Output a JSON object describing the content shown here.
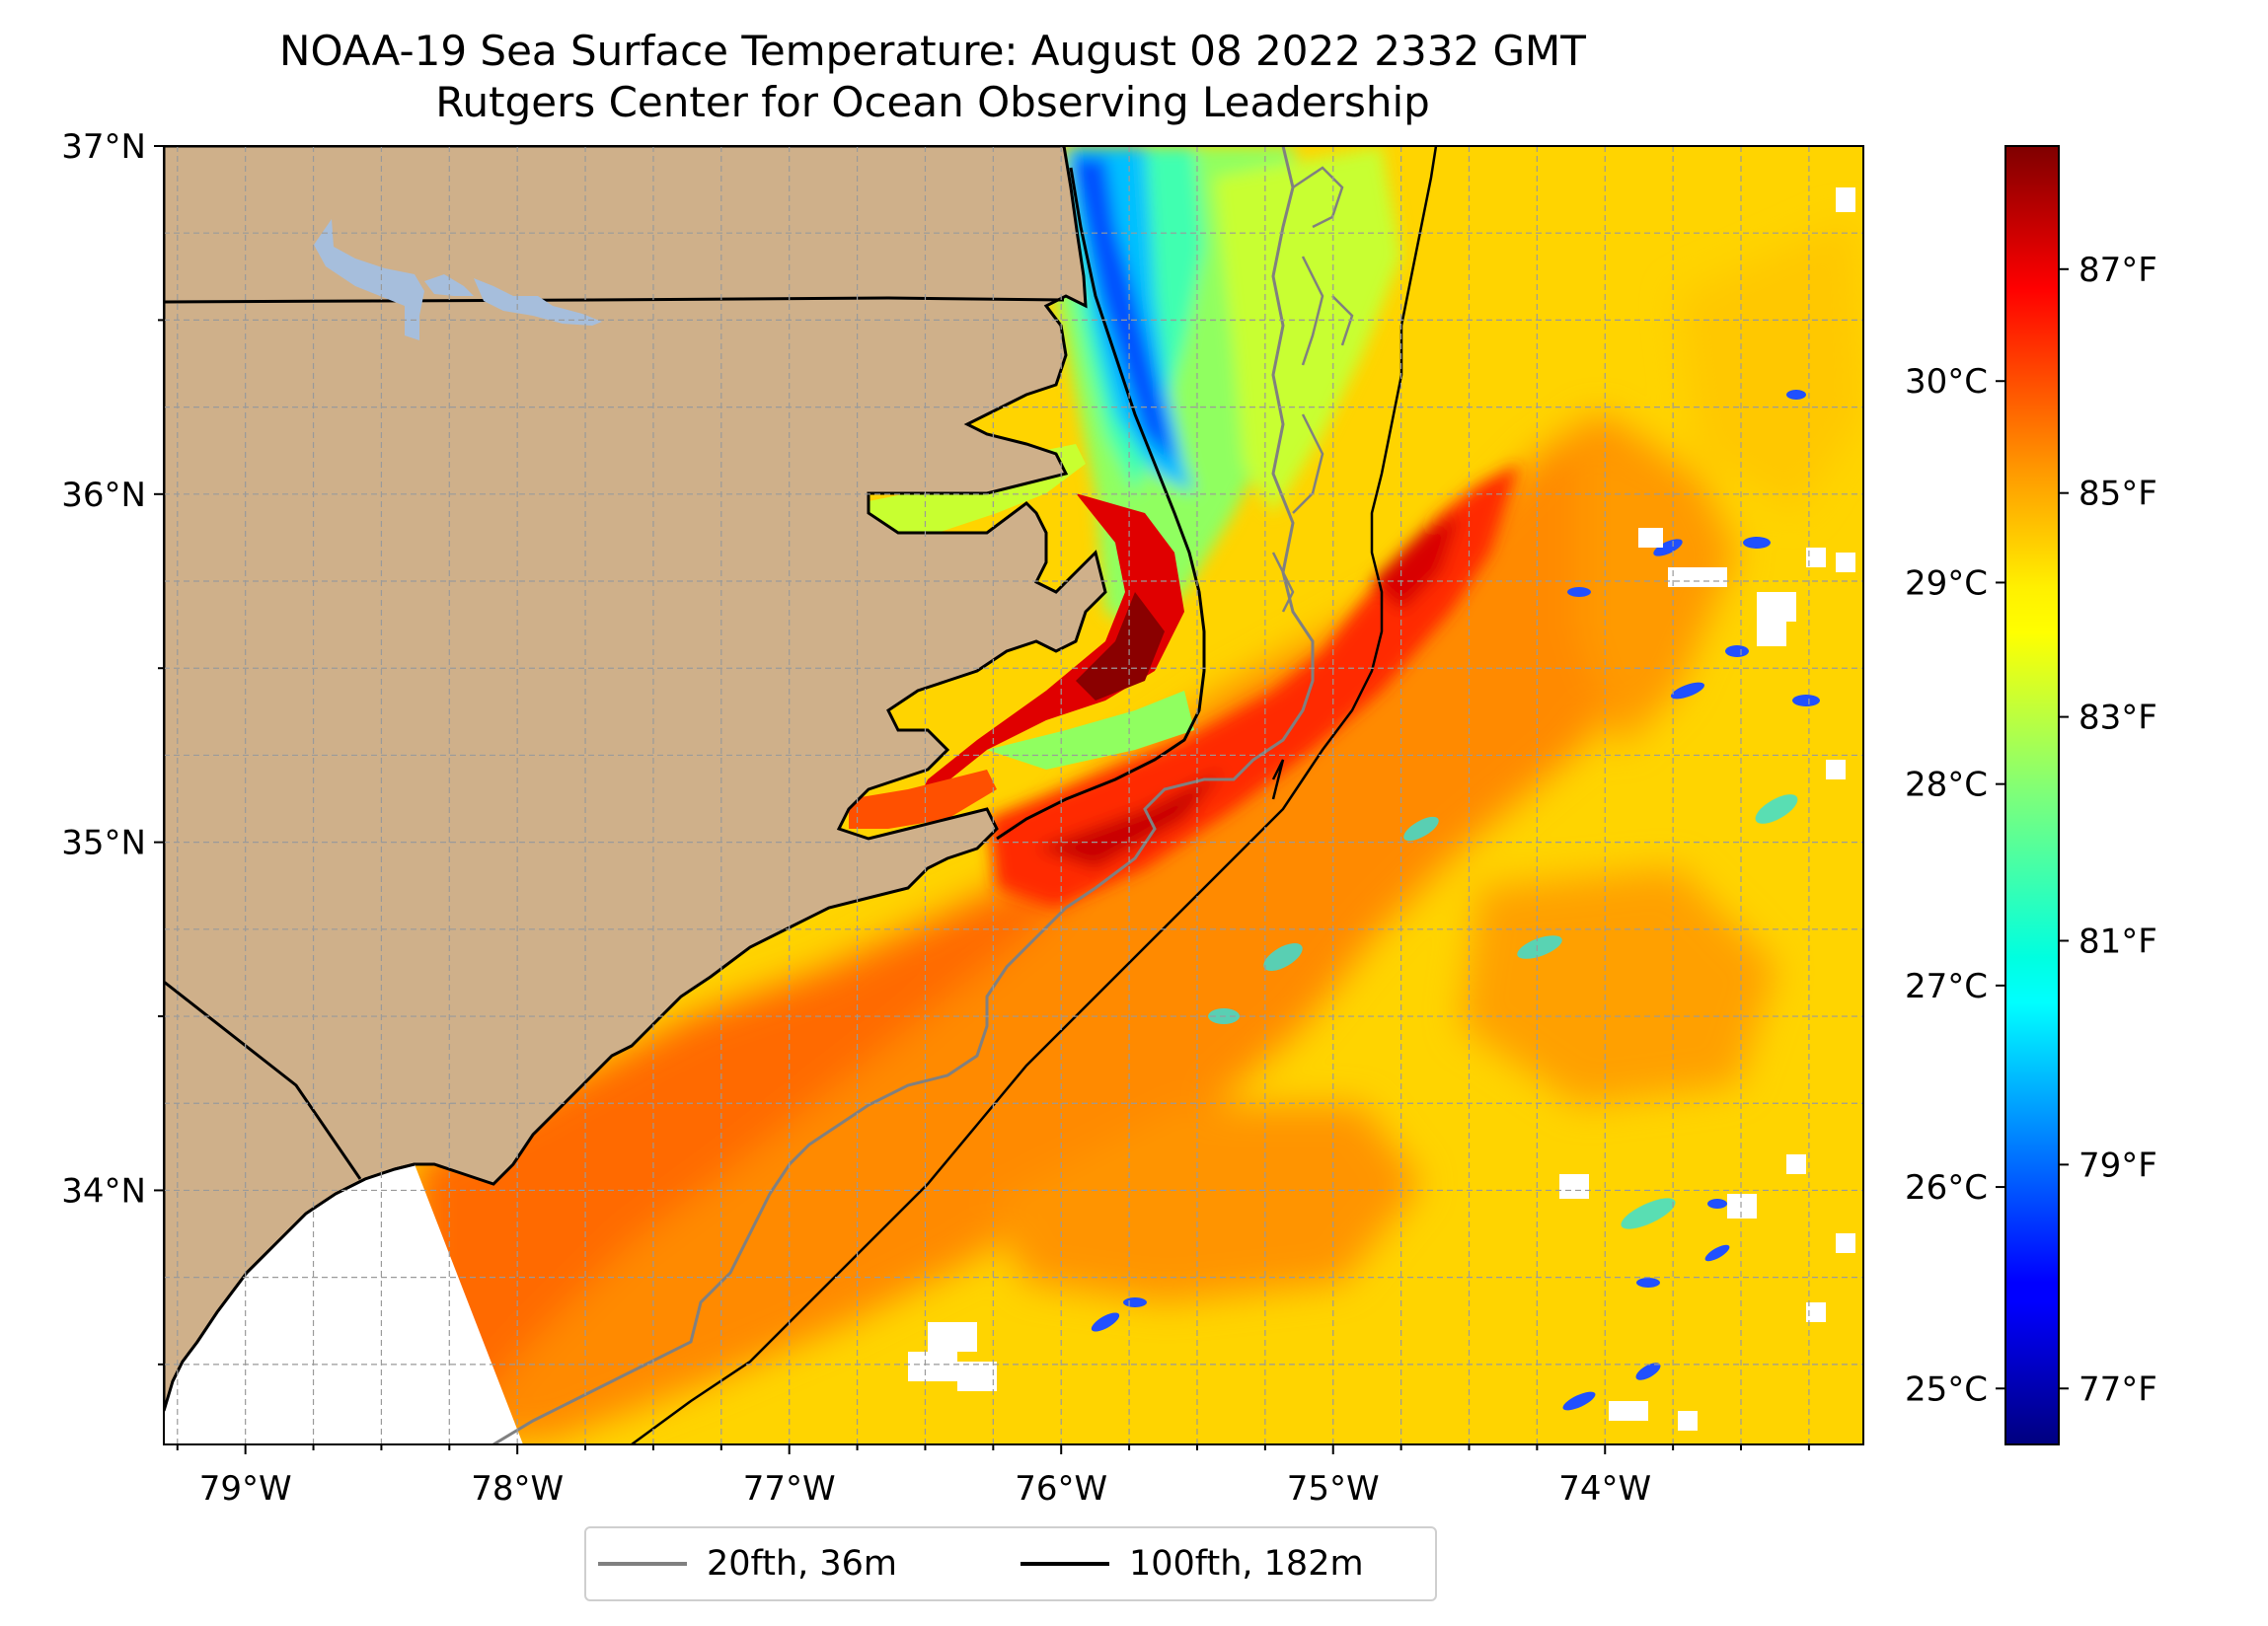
{
  "title": {
    "line1": "NOAA-19 Sea Surface Temperature: August 08 2022 2332 GMT",
    "line2": "Rutgers Center for Ocean Observing Leadership"
  },
  "map": {
    "lat_ticks": [
      "37°N",
      "36°N",
      "35°N",
      "34°N"
    ],
    "lon_ticks": [
      "79°W",
      "78°W",
      "77°W",
      "76°W",
      "75°W",
      "74°W"
    ],
    "lon_range": [
      -79.3,
      -73.05
    ],
    "lat_range": [
      33.27,
      37.0
    ],
    "colors": {
      "land": "#cfb08a",
      "lakes": "#a6bedc",
      "no_data": "#ffffff",
      "isobath_20fth": "#808080",
      "isobath_100fth": "#000000"
    }
  },
  "colorbar": {
    "colormap": "jet",
    "celsius_ticks": [
      "30°C",
      "29°C",
      "28°C",
      "27°C",
      "26°C",
      "25°C"
    ],
    "fahrenheit_ticks": [
      "87°F",
      "85°F",
      "83°F",
      "81°F",
      "79°F",
      "77°F"
    ],
    "celsius_values": [
      30,
      29,
      28,
      27,
      26,
      25
    ],
    "fahrenheit_values": [
      87,
      85,
      83,
      81,
      79,
      77
    ],
    "range_f": [
      76.5,
      88.1
    ]
  },
  "legend": {
    "items": [
      {
        "label": "20fth, 36m",
        "color": "#808080"
      },
      {
        "label": "100fth, 182m",
        "color": "#000000"
      }
    ]
  }
}
